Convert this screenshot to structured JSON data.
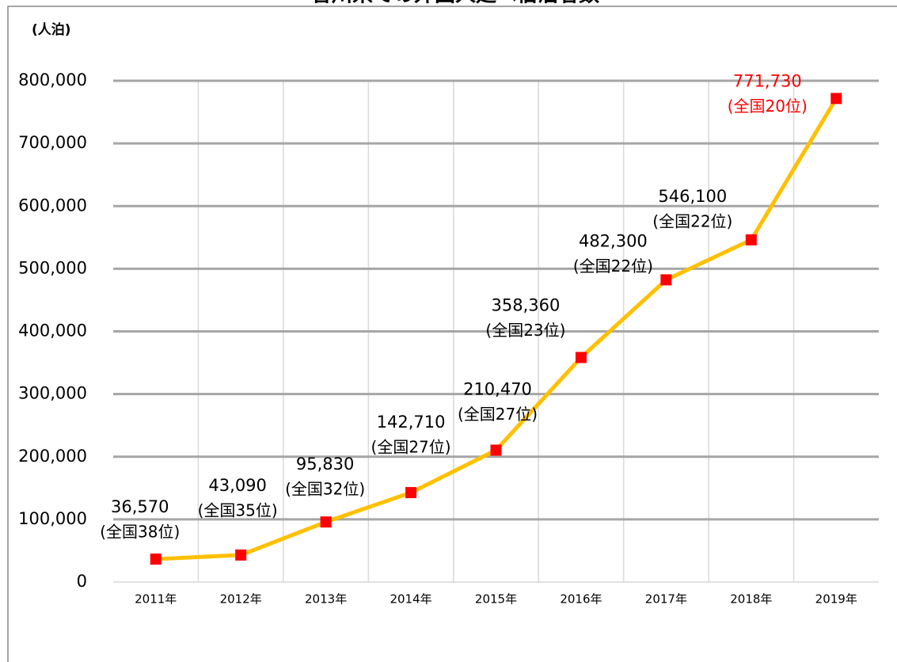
{
  "chart_data": {
    "type": "line",
    "title": "香川県での外国人延べ宿泊者数",
    "y_unit": "(人泊)",
    "categories": [
      "2011年",
      "2012年",
      "2013年",
      "2014年",
      "2015年",
      "2016年",
      "2017年",
      "2018年",
      "2019年"
    ],
    "series": [
      {
        "color": "#ffc000",
        "marker_color": "#ff0000",
        "values": [
          36570,
          43090,
          95830,
          142710,
          210470,
          358360,
          482300,
          546100,
          771730
        ],
        "value_labels": [
          "36,570",
          "43,090",
          "95,830",
          "142,710",
          "210,470",
          "358,360",
          "482,300",
          "546,100",
          "771,730"
        ],
        "rank_labels": [
          "(全国38位)",
          "(全国35位)",
          "(全国32位)",
          "(全国27位)",
          "(全国27位)",
          "(全国23位)",
          "(全国22位)",
          "(全国22位)",
          "(全国20位)"
        ],
        "label_colors": [
          "#000000",
          "#000000",
          "#000000",
          "#000000",
          "#000000",
          "#000000",
          "#000000",
          "#000000",
          "#ff0000"
        ]
      }
    ],
    "ylim": [
      0,
      800000
    ],
    "yticks": [
      0,
      {
        "value": 100000,
        "label": "100,000"
      },
      {
        "value": 200000,
        "label": "200,000"
      },
      {
        "value": 300000,
        "label": "300,000"
      },
      {
        "value": 400000,
        "label": "400,000"
      },
      {
        "value": 500000,
        "label": "500,000"
      },
      {
        "value": 600000,
        "label": "600,000"
      },
      {
        "value": 700000,
        "label": "700,000"
      },
      {
        "value": 800000,
        "label": "800,000"
      }
    ],
    "grid": true
  }
}
